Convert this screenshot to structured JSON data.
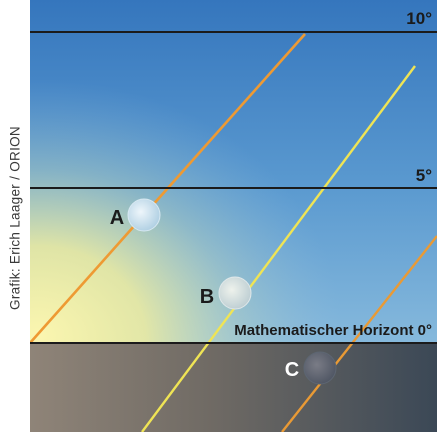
{
  "credit": "Grafik: Erich Laager / ORION",
  "horizon_lines": [
    {
      "degrees": 10,
      "label": "10°"
    },
    {
      "degrees": 5,
      "label": "5°"
    },
    {
      "degrees": 0,
      "label": "Mathematischer Horizont 0°"
    }
  ],
  "moons": [
    {
      "label": "A",
      "altitude_deg": 3.0
    },
    {
      "label": "B",
      "altitude_deg": 1.1
    },
    {
      "label": "C",
      "altitude_deg": -0.5
    }
  ],
  "colors": {
    "sky_top": "#3b7fc4",
    "sky_mid": "#6aa6d6",
    "sunglow": "#f3ef9e",
    "ground_left": "#8a7f72",
    "ground_right": "#3e4b58",
    "path_orange": "#ef9e35",
    "path_yellow": "#f0e852"
  }
}
